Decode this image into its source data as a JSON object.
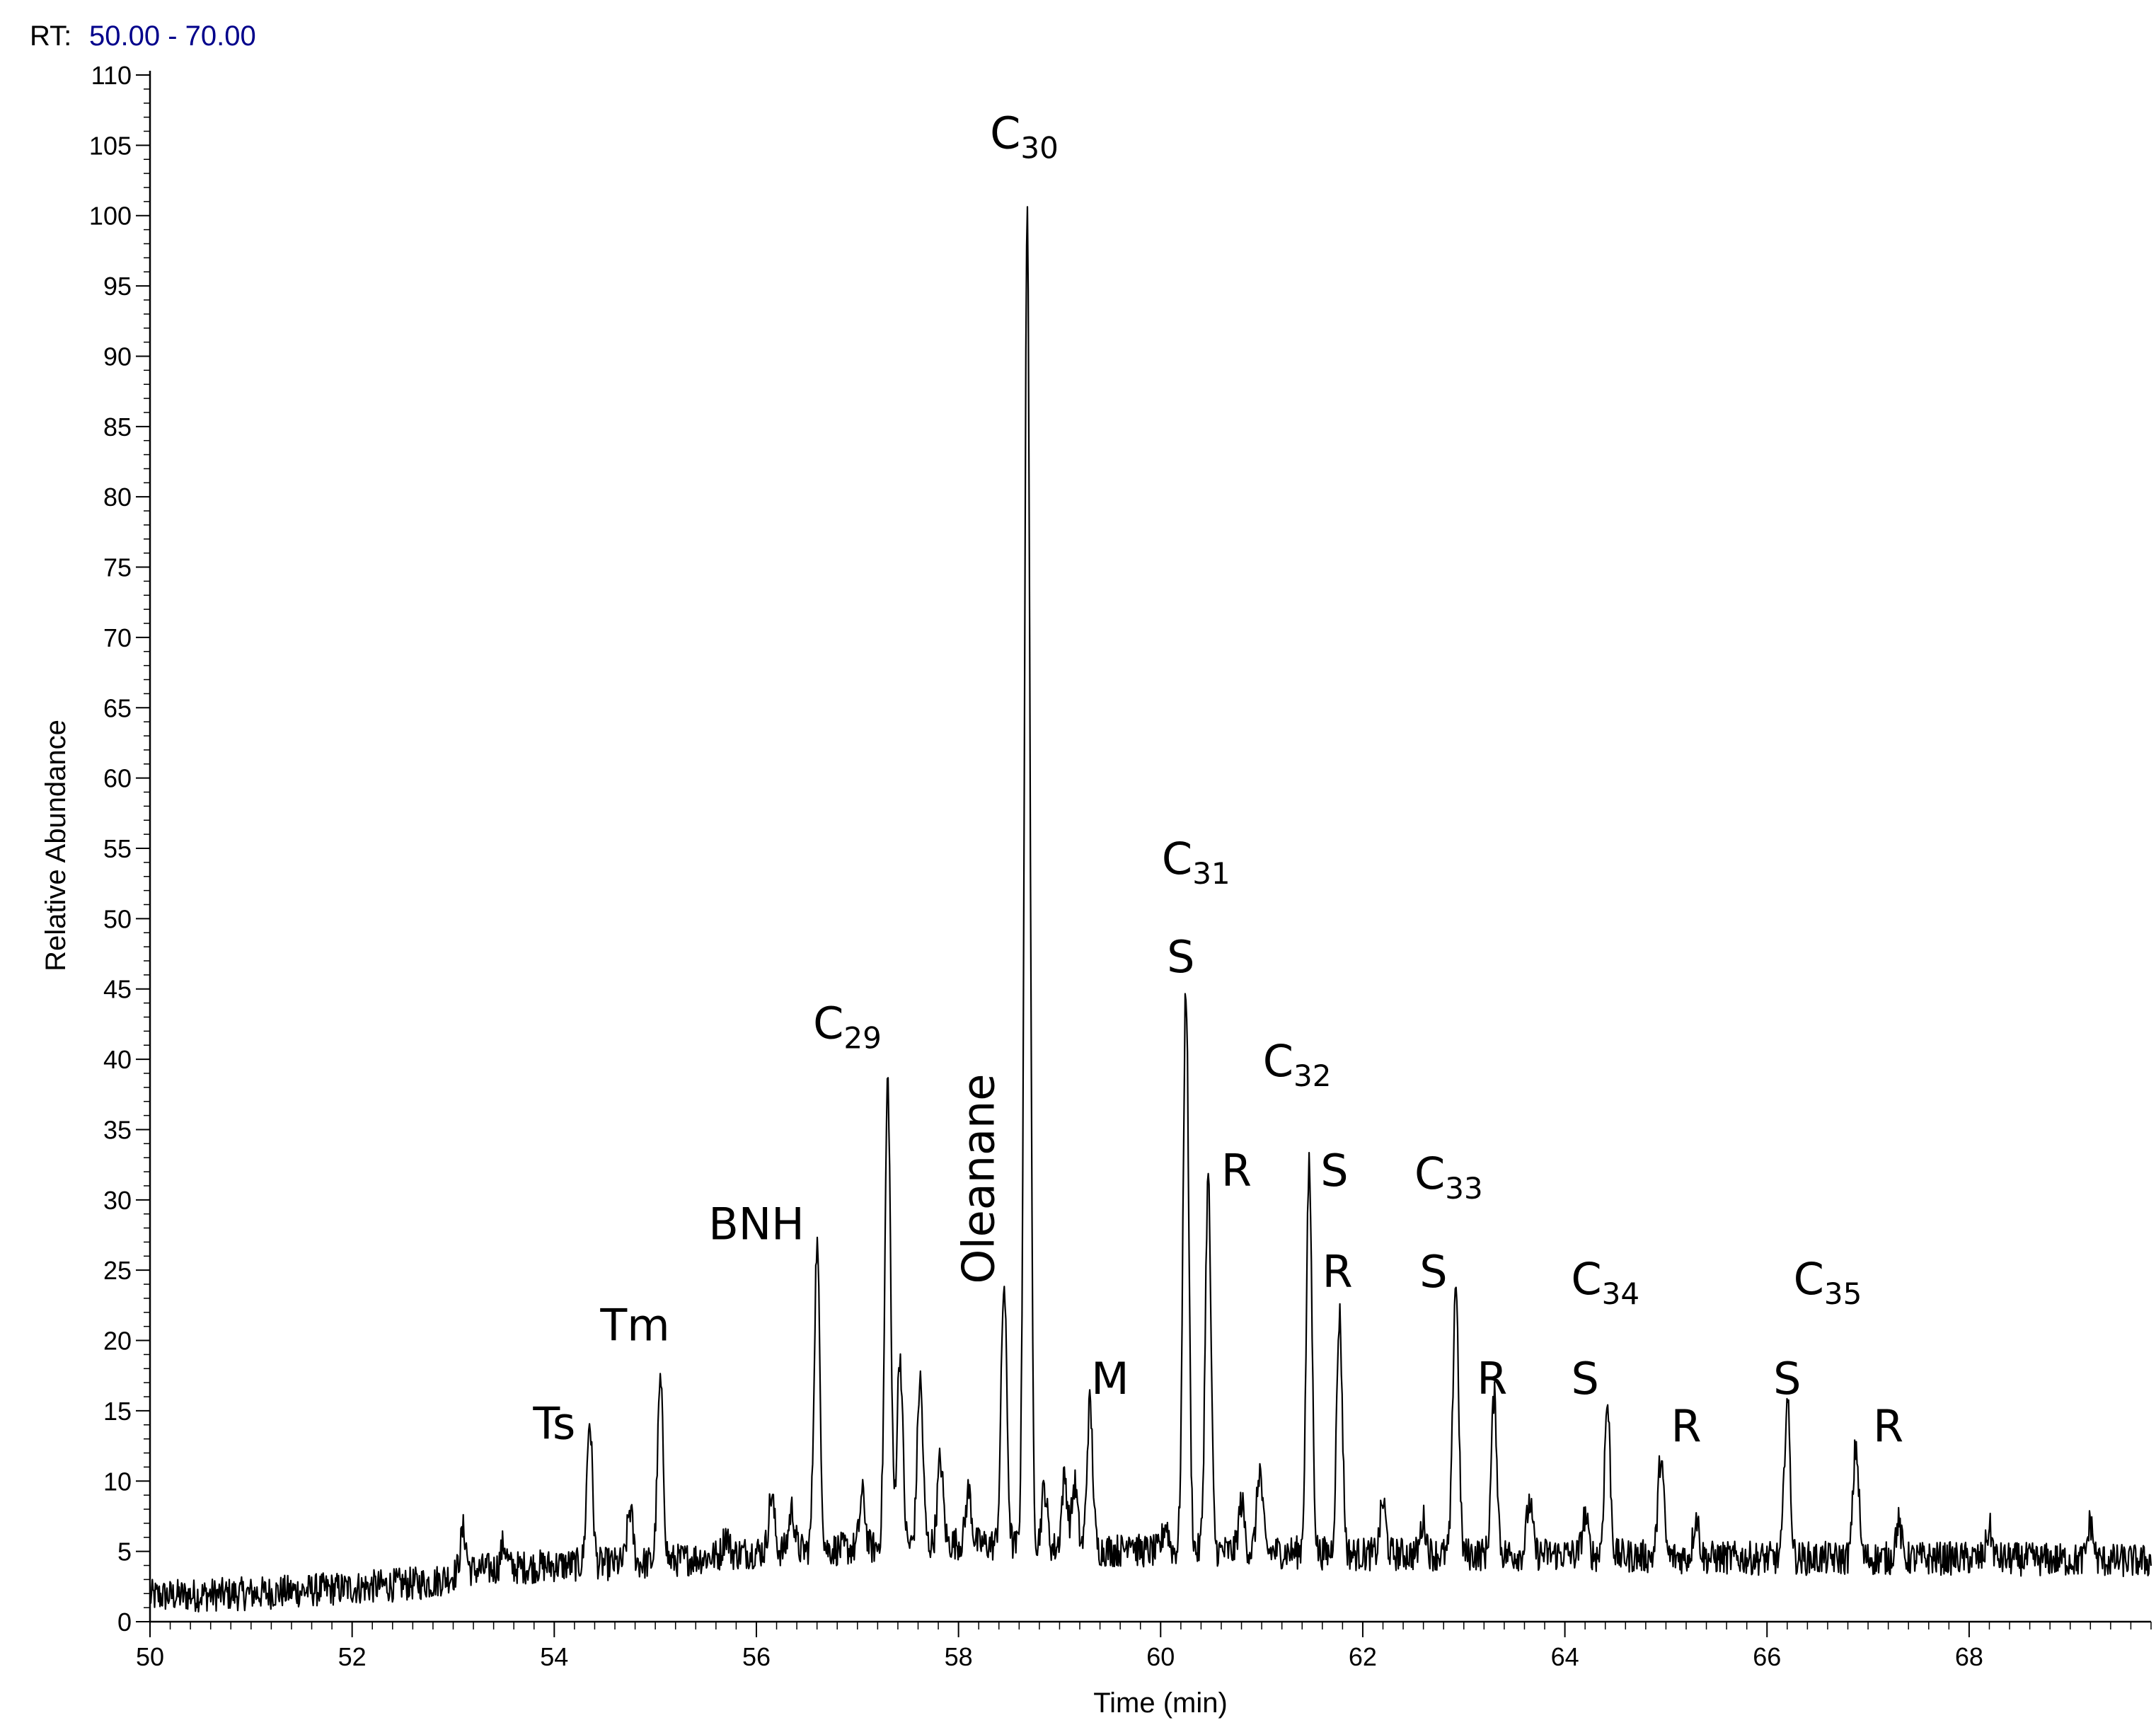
{
  "header": {
    "rt_label": "RT:",
    "rt_range": "50.00 - 70.00",
    "rt_range_color": "#00008b"
  },
  "chart_data": {
    "type": "line",
    "xlabel": "Time (min)",
    "ylabel": "Relative Abundance",
    "xlim": [
      50,
      69.8
    ],
    "ylim": [
      0,
      110
    ],
    "xticks": [
      50,
      52,
      54,
      56,
      58,
      60,
      62,
      64,
      66,
      68
    ],
    "yticks": [
      0,
      5,
      10,
      15,
      20,
      25,
      30,
      35,
      40,
      45,
      50,
      55,
      60,
      65,
      70,
      75,
      80,
      85,
      90,
      95,
      100,
      105,
      110
    ],
    "grid": false,
    "line_color": "#000000",
    "baseline": [
      [
        50.0,
        1.8
      ],
      [
        51.0,
        2.0
      ],
      [
        52.0,
        2.4
      ],
      [
        52.8,
        2.8
      ],
      [
        53.1,
        3.6
      ],
      [
        53.5,
        3.8
      ],
      [
        54.0,
        4.0
      ],
      [
        55.0,
        4.2
      ],
      [
        56.0,
        5.0
      ],
      [
        57.0,
        5.2
      ],
      [
        58.0,
        5.6
      ],
      [
        59.0,
        5.2
      ],
      [
        60.0,
        5.0
      ],
      [
        61.0,
        5.0
      ],
      [
        62.0,
        4.8
      ],
      [
        63.0,
        4.8
      ],
      [
        64.0,
        4.8
      ],
      [
        65.0,
        4.6
      ],
      [
        66.0,
        4.5
      ],
      [
        67.0,
        4.5
      ],
      [
        68.0,
        4.5
      ],
      [
        69.8,
        4.3
      ]
    ],
    "peaks": [
      [
        53.1,
        6.5
      ],
      [
        53.5,
        5.5
      ],
      [
        54.35,
        14.3
      ],
      [
        54.75,
        8.0
      ],
      [
        55.05,
        17.0
      ],
      [
        55.7,
        6.2
      ],
      [
        56.15,
        9.0
      ],
      [
        56.35,
        8.0
      ],
      [
        56.6,
        26.8
      ],
      [
        57.05,
        9.0
      ],
      [
        57.3,
        38.5
      ],
      [
        57.42,
        19.0
      ],
      [
        57.62,
        17.2
      ],
      [
        57.82,
        11.5
      ],
      [
        58.1,
        9.3
      ],
      [
        58.45,
        24.0
      ],
      [
        58.68,
        100.0
      ],
      [
        58.85,
        9.5
      ],
      [
        59.05,
        10.3
      ],
      [
        59.15,
        9.8
      ],
      [
        59.3,
        15.5
      ],
      [
        59.7,
        6.2
      ],
      [
        60.05,
        7.0
      ],
      [
        60.25,
        45.2
      ],
      [
        60.47,
        31.5
      ],
      [
        60.8,
        8.5
      ],
      [
        60.98,
        10.8
      ],
      [
        61.47,
        32.3
      ],
      [
        61.77,
        21.8
      ],
      [
        62.2,
        8.5
      ],
      [
        62.6,
        7.2
      ],
      [
        62.92,
        24.2
      ],
      [
        63.3,
        16.0
      ],
      [
        63.65,
        8.5
      ],
      [
        64.2,
        7.5
      ],
      [
        64.42,
        15.5
      ],
      [
        64.95,
        11.8
      ],
      [
        65.3,
        7.5
      ],
      [
        66.2,
        15.8
      ],
      [
        66.88,
        12.5
      ],
      [
        67.3,
        7.0
      ],
      [
        68.2,
        6.6
      ],
      [
        69.2,
        7.0
      ]
    ],
    "annotations": [
      {
        "base": "Ts",
        "sub": "",
        "x": 54.0,
        "y": 13.0,
        "vertical": false
      },
      {
        "base": "Tm",
        "sub": "",
        "x": 54.8,
        "y": 20.0,
        "vertical": false
      },
      {
        "base": "BNH",
        "sub": "",
        "x": 56.0,
        "y": 27.2,
        "vertical": false
      },
      {
        "base": "C",
        "sub": "29",
        "x": 56.9,
        "y": 41.5,
        "vertical": false
      },
      {
        "base": "Oleanane",
        "sub": "",
        "x": 58.35,
        "y": 31.5,
        "vertical": true
      },
      {
        "base": "C",
        "sub": "30",
        "x": 58.65,
        "y": 104.8,
        "vertical": false
      },
      {
        "base": "M",
        "sub": "",
        "x": 59.5,
        "y": 16.2,
        "vertical": false
      },
      {
        "base": "C",
        "sub": "31",
        "x": 60.35,
        "y": 53.2,
        "vertical": false
      },
      {
        "base": "S",
        "sub": "",
        "x": 60.2,
        "y": 46.2,
        "vertical": false
      },
      {
        "base": "R",
        "sub": "",
        "x": 60.75,
        "y": 31.0,
        "vertical": false
      },
      {
        "base": "C",
        "sub": "32",
        "x": 61.35,
        "y": 38.8,
        "vertical": false
      },
      {
        "base": "S",
        "sub": "",
        "x": 61.72,
        "y": 31.0,
        "vertical": false
      },
      {
        "base": "R",
        "sub": "",
        "x": 61.75,
        "y": 23.8,
        "vertical": false
      },
      {
        "base": "C",
        "sub": "33",
        "x": 62.85,
        "y": 30.8,
        "vertical": false
      },
      {
        "base": "S",
        "sub": "",
        "x": 62.7,
        "y": 23.8,
        "vertical": false
      },
      {
        "base": "R",
        "sub": "",
        "x": 63.28,
        "y": 16.2,
        "vertical": false
      },
      {
        "base": "C",
        "sub": "34",
        "x": 64.4,
        "y": 23.3,
        "vertical": false
      },
      {
        "base": "S",
        "sub": "",
        "x": 64.2,
        "y": 16.2,
        "vertical": false
      },
      {
        "base": "R",
        "sub": "",
        "x": 65.2,
        "y": 12.8,
        "vertical": false
      },
      {
        "base": "C",
        "sub": "35",
        "x": 66.6,
        "y": 23.3,
        "vertical": false
      },
      {
        "base": "S",
        "sub": "",
        "x": 66.2,
        "y": 16.2,
        "vertical": false
      },
      {
        "base": "R",
        "sub": "",
        "x": 67.2,
        "y": 12.8,
        "vertical": false
      }
    ]
  }
}
